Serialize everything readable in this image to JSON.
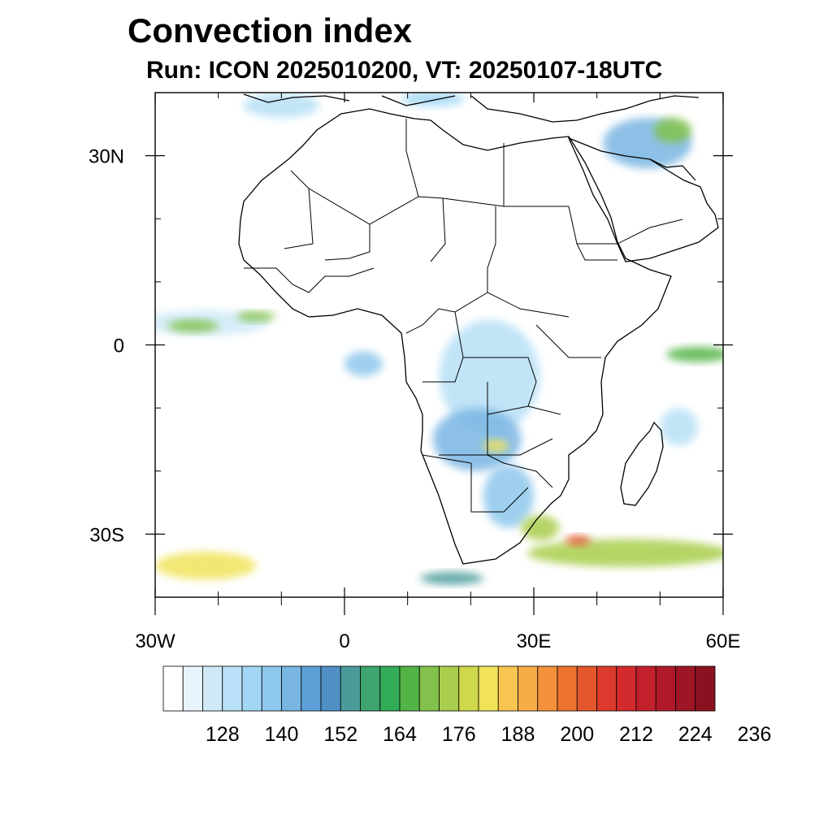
{
  "title": "Convection index",
  "subtitle": "Run: ICON 2025010200,  VT: 20250107-18UTC",
  "map": {
    "extent": {
      "lon": [
        -30,
        60
      ],
      "lat": [
        -40,
        40
      ]
    },
    "lat_ticks": [
      {
        "value": 30,
        "label": "30N"
      },
      {
        "value": 0,
        "label": "0"
      },
      {
        "value": -30,
        "label": "30S"
      }
    ],
    "lon_ticks": [
      {
        "value": -30,
        "label": "30W"
      },
      {
        "value": 0,
        "label": "0"
      },
      {
        "value": 30,
        "label": "30E"
      },
      {
        "value": 60,
        "label": "60E"
      }
    ],
    "minor_lat_ticks": [
      40,
      20,
      10,
      -10,
      -20,
      -40
    ],
    "minor_lon_ticks": [
      -20,
      -10,
      10,
      20,
      40,
      50
    ],
    "field_blobs": [
      {
        "lon": -22,
        "lat": 3.5,
        "rx": 10,
        "ry": 2,
        "level": 2
      },
      {
        "lon": -24,
        "lat": 3,
        "rx": 4,
        "ry": 1,
        "level": 13
      },
      {
        "lon": -14,
        "lat": 4.5,
        "rx": 3,
        "ry": 0.8,
        "level": 13
      },
      {
        "lon": 3,
        "lat": -3,
        "rx": 3,
        "ry": 2,
        "level": 5
      },
      {
        "lon": 23,
        "lat": -5,
        "rx": 8,
        "ry": 9,
        "level": 3
      },
      {
        "lon": 21,
        "lat": -15,
        "rx": 7,
        "ry": 5,
        "level": 6
      },
      {
        "lon": 24,
        "lat": -16,
        "rx": 2,
        "ry": 1,
        "level": 16
      },
      {
        "lon": 26,
        "lat": -24,
        "rx": 4,
        "ry": 5,
        "level": 5
      },
      {
        "lon": 31,
        "lat": -29,
        "rx": 3,
        "ry": 2,
        "level": 14
      },
      {
        "lon": 45,
        "lat": -33,
        "rx": 16,
        "ry": 2.2,
        "level": 14
      },
      {
        "lon": 37,
        "lat": -31,
        "rx": 2,
        "ry": 0.8,
        "level": 21
      },
      {
        "lon": -22,
        "lat": -35,
        "rx": 8,
        "ry": 2.2,
        "level": 16
      },
      {
        "lon": 48,
        "lat": 32,
        "rx": 7,
        "ry": 4,
        "level": 6
      },
      {
        "lon": 52,
        "lat": 34,
        "rx": 3,
        "ry": 2,
        "level": 13
      },
      {
        "lon": 56,
        "lat": -1.5,
        "rx": 5,
        "ry": 1.2,
        "level": 12
      },
      {
        "lon": 53,
        "lat": -13,
        "rx": 3,
        "ry": 3,
        "level": 3
      },
      {
        "lon": 17,
        "lat": -37,
        "rx": 5,
        "ry": 1,
        "level": 9
      },
      {
        "lon": -10,
        "lat": 38,
        "rx": 6,
        "ry": 2,
        "level": 3
      },
      {
        "lon": 14,
        "lat": 39,
        "rx": 5,
        "ry": 1.2,
        "level": 4
      }
    ]
  },
  "colorbar": {
    "colors": [
      "#ffffff",
      "#e8f4fc",
      "#cfe9f7",
      "#b8e0f6",
      "#a1d7f4",
      "#8ec7ec",
      "#7ab6e3",
      "#5b9fd6",
      "#4f8fc4",
      "#4a9b9a",
      "#3ea56f",
      "#33ac57",
      "#52b447",
      "#82c24c",
      "#a9cd4c",
      "#cfd84c",
      "#f0e35a",
      "#f8c650",
      "#f8ac48",
      "#f4923b",
      "#ed7430",
      "#e4572d",
      "#db3a2c",
      "#d22a2d",
      "#c2202b",
      "#b0192a",
      "#9e1526",
      "#8a1220"
    ],
    "labels": [
      "128",
      "140",
      "152",
      "164",
      "176",
      "188",
      "200",
      "212",
      "224",
      "236"
    ]
  }
}
